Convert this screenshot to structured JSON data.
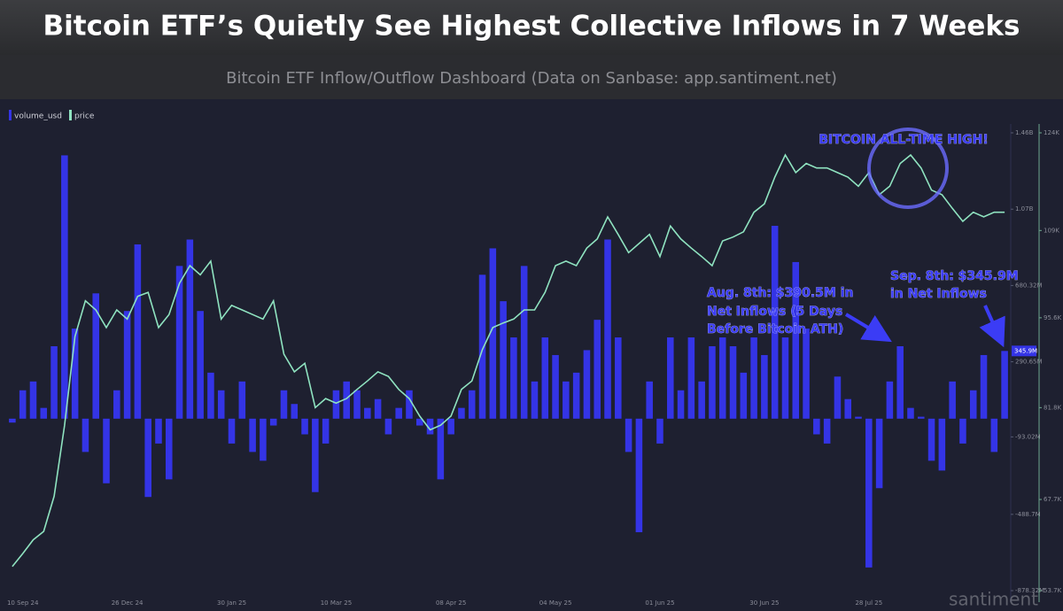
{
  "chart_data": {
    "type": "bar",
    "title": "Bitcoin ETF’s Quietly See Highest Collective Inflows in 7 Weeks",
    "subtitle": "Bitcoin ETF Inflow/Outflow Dashboard (Data on Sanbase: app.santiment.net)",
    "categories": [
      null,
      "10 Sep 24",
      null,
      null,
      null,
      null,
      null,
      null,
      null,
      null,
      null,
      "26 Dec 24",
      null,
      null,
      null,
      null,
      null,
      null,
      null,
      null,
      null,
      "30 Jan 25",
      null,
      null,
      null,
      null,
      null,
      null,
      null,
      null,
      null,
      "10 Mar 25",
      null,
      null,
      null,
      null,
      null,
      null,
      null,
      null,
      null,
      null,
      "08 Apr 25",
      null,
      null,
      null,
      null,
      null,
      null,
      null,
      null,
      null,
      "04 May 25",
      null,
      null,
      null,
      null,
      null,
      null,
      null,
      null,
      null,
      "01 Jun 25",
      null,
      null,
      null,
      null,
      null,
      null,
      null,
      null,
      null,
      "30 Jun 25",
      null,
      null,
      null,
      null,
      null,
      null,
      null,
      null,
      null,
      "28 Jul 25",
      null,
      null,
      null,
      null,
      null,
      null,
      null,
      null,
      null,
      null,
      null,
      null,
      null
    ],
    "series": [
      {
        "name": "volume_usd",
        "type": "bar",
        "color": "#3434e6",
        "values": [
          -20,
          145,
          190,
          55,
          370,
          1345,
          460,
          -170,
          640,
          -330,
          145,
          550,
          890,
          -400,
          -127,
          -310,
          780,
          915,
          550,
          235,
          145,
          -127,
          190,
          -170,
          -215,
          -35,
          145,
          75,
          -80,
          -375,
          -127,
          145,
          190,
          145,
          55,
          100,
          -80,
          55,
          145,
          -35,
          -80,
          -310,
          -80,
          55,
          145,
          735,
          870,
          600,
          415,
          780,
          190,
          415,
          325,
          190,
          235,
          350,
          505,
          915,
          415,
          -170,
          -580,
          190,
          -127,
          415,
          145,
          415,
          190,
          370,
          415,
          370,
          235,
          415,
          325,
          985,
          415,
          800,
          460,
          -80,
          -127,
          215,
          100,
          10,
          -760,
          -355,
          190,
          370,
          55,
          10,
          -215,
          -265,
          190,
          -127,
          145,
          325,
          -170,
          345.9
        ],
        "value_labels": [
          null,
          null,
          null,
          null,
          null,
          null,
          null,
          null,
          null,
          null,
          null,
          null,
          null,
          null,
          null,
          null,
          null,
          null,
          null,
          null,
          null,
          null,
          null,
          null,
          null,
          null,
          null,
          null,
          null,
          null,
          null,
          null,
          null,
          null,
          null,
          null,
          null,
          null,
          null,
          null,
          null,
          null,
          null,
          null,
          null,
          null,
          null,
          null,
          null,
          null,
          null,
          null,
          null,
          null,
          null,
          null,
          null,
          null,
          null,
          null,
          null,
          null,
          null,
          null,
          null,
          null,
          null,
          null,
          null,
          null,
          null,
          null,
          null,
          null,
          null,
          null,
          null,
          null,
          null,
          null,
          null,
          null,
          null,
          null,
          null,
          null,
          null,
          null,
          null,
          null,
          null,
          null,
          null,
          null,
          null,
          "345.9M"
        ]
      },
      {
        "name": "price",
        "type": "line",
        "axis": "y2",
        "color": "#8fe3c0",
        "values": [
          57.4,
          59.4,
          61.5,
          62.8,
          68.2,
          79.1,
          92.7,
          98.2,
          96.8,
          94.1,
          96.8,
          95.4,
          98.9,
          99.5,
          94.1,
          96.1,
          100.9,
          103.6,
          102.2,
          104.3,
          95.4,
          97.5,
          96.8,
          96.1,
          95.4,
          98.2,
          90.0,
          87.3,
          88.6,
          81.8,
          83.2,
          82.5,
          83.2,
          84.6,
          85.9,
          87.3,
          86.6,
          84.6,
          83.2,
          80.5,
          78.4,
          79.1,
          80.5,
          84.6,
          85.9,
          90.7,
          94.1,
          94.8,
          95.4,
          96.8,
          96.8,
          99.5,
          103.6,
          104.3,
          103.6,
          106.3,
          107.7,
          111.1,
          108.4,
          105.6,
          107.0,
          108.4,
          105.0,
          109.7,
          107.7,
          106.3,
          105.0,
          103.6,
          107.4,
          108.0,
          108.8,
          111.8,
          113.1,
          117.2,
          120.6,
          117.9,
          119.3,
          118.6,
          118.6,
          117.9,
          117.2,
          115.8,
          117.9,
          114.5,
          115.8,
          119.3,
          120.6,
          118.6,
          115.2,
          114.5,
          112.4,
          110.4,
          111.8,
          111.1,
          111.8,
          111.8
        ]
      }
    ],
    "ylim": [
      -878.32,
      1460
    ],
    "yticks": [
      {
        "value": 1460,
        "label": "1.46B"
      },
      {
        "value": 1070,
        "label": "1.07B"
      },
      {
        "value": 680.32,
        "label": "680.32M"
      },
      {
        "value": 290.65,
        "label": "290.65M"
      },
      {
        "value": -93.02,
        "label": "-93.02M"
      },
      {
        "value": -488.7,
        "label": "-488.7M"
      },
      {
        "value": -878.32,
        "label": "-878.32M"
      }
    ],
    "y2lim": [
      53.7,
      124
    ],
    "y2ticks": [
      {
        "value": 124,
        "label": "124K"
      },
      {
        "value": 109,
        "label": "109K"
      },
      {
        "value": 95.6,
        "label": "95.6K"
      },
      {
        "value": 81.8,
        "label": "81.8K"
      },
      {
        "value": 67.7,
        "label": "67.7K"
      },
      {
        "value": 53.7,
        "label": "53.7K"
      }
    ],
    "annotations": {
      "ath": "BITCOIN ALL-TIME HIGH!",
      "aug": [
        "Aug. 8th: $390.5M in",
        "Net Inflows (5 Days",
        "Before Bitcoin ATH)"
      ],
      "sep": [
        "Sep. 8th: $345.9M",
        "in Net Inflows"
      ]
    },
    "watermark": "santiment"
  }
}
